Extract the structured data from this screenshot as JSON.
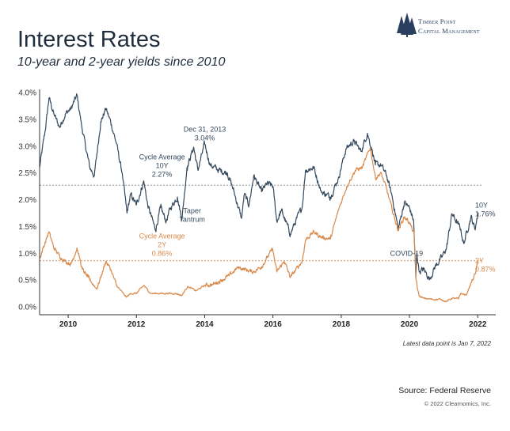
{
  "header": {
    "title": "Interest Rates",
    "subtitle": "10-year and 2-year yields since 2010"
  },
  "logo": {
    "line1": "Timber Point",
    "line2": "Capital Management",
    "icon": "pine-trees-icon",
    "color": "#2a3f5f"
  },
  "colors": {
    "series_10y": "#34495e",
    "series_2y": "#d9894a",
    "avg_line": "#888888",
    "axis": "#333333"
  },
  "chart_data": {
    "type": "line",
    "x_type": "date",
    "xlim": [
      "2009-03-01",
      "2022-01-07"
    ],
    "ylim": [
      0.0,
      4.0
    ],
    "ytick_labels": [
      "0.0%",
      "0.5%",
      "1.0%",
      "1.5%",
      "2.0%",
      "2.5%",
      "3.0%",
      "3.5%",
      "4.0%"
    ],
    "yticks": [
      0.0,
      0.5,
      1.0,
      1.5,
      2.0,
      2.5,
      3.0,
      3.5,
      4.0
    ],
    "xtick_labels": [
      "2010",
      "2012",
      "2014",
      "2016",
      "2018",
      "2020",
      "2022"
    ],
    "xticks": [
      "2010-01-01",
      "2012-01-01",
      "2014-01-01",
      "2016-01-01",
      "2018-01-01",
      "2020-01-01",
      "2022-01-01"
    ],
    "grid": false,
    "series": [
      {
        "name": "10Y",
        "end_label": "1.76%",
        "points": [
          [
            "2009-03-01",
            2.6
          ],
          [
            "2009-05-01",
            3.3
          ],
          [
            "2009-06-10",
            3.9
          ],
          [
            "2009-08-01",
            3.6
          ],
          [
            "2009-10-01",
            3.35
          ],
          [
            "2009-12-01",
            3.6
          ],
          [
            "2010-02-01",
            3.7
          ],
          [
            "2010-04-05",
            3.95
          ],
          [
            "2010-06-01",
            3.3
          ],
          [
            "2010-08-20",
            2.6
          ],
          [
            "2010-10-08",
            2.45
          ],
          [
            "2010-12-15",
            3.45
          ],
          [
            "2011-02-08",
            3.7
          ],
          [
            "2011-04-01",
            3.45
          ],
          [
            "2011-06-01",
            3.05
          ],
          [
            "2011-08-01",
            2.5
          ],
          [
            "2011-09-22",
            1.75
          ],
          [
            "2011-11-01",
            2.1
          ],
          [
            "2012-01-01",
            1.9
          ],
          [
            "2012-03-20",
            2.35
          ],
          [
            "2012-05-01",
            1.9
          ],
          [
            "2012-07-24",
            1.43
          ],
          [
            "2012-09-15",
            1.85
          ],
          [
            "2012-11-15",
            1.6
          ],
          [
            "2013-01-01",
            1.85
          ],
          [
            "2013-03-15",
            2.05
          ],
          [
            "2013-05-02",
            1.63
          ],
          [
            "2013-06-25",
            2.6
          ],
          [
            "2013-09-05",
            2.98
          ],
          [
            "2013-10-20",
            2.55
          ],
          [
            "2013-12-31",
            3.04
          ],
          [
            "2014-03-01",
            2.65
          ],
          [
            "2014-06-01",
            2.55
          ],
          [
            "2014-09-01",
            2.5
          ],
          [
            "2014-11-01",
            2.2
          ],
          [
            "2015-01-30",
            1.65
          ],
          [
            "2015-03-01",
            2.1
          ],
          [
            "2015-04-20",
            1.9
          ],
          [
            "2015-06-10",
            2.45
          ],
          [
            "2015-09-01",
            2.15
          ],
          [
            "2015-11-01",
            2.3
          ],
          [
            "2016-01-01",
            2.25
          ],
          [
            "2016-02-11",
            1.6
          ],
          [
            "2016-04-01",
            1.8
          ],
          [
            "2016-07-06",
            1.36
          ],
          [
            "2016-09-01",
            1.6
          ],
          [
            "2016-11-08",
            1.85
          ],
          [
            "2016-12-15",
            2.55
          ],
          [
            "2017-03-13",
            2.6
          ],
          [
            "2017-06-01",
            2.15
          ],
          [
            "2017-09-07",
            2.05
          ],
          [
            "2017-12-01",
            2.4
          ],
          [
            "2018-02-21",
            2.95
          ],
          [
            "2018-05-17",
            3.1
          ],
          [
            "2018-08-01",
            2.9
          ],
          [
            "2018-10-08",
            3.24
          ],
          [
            "2018-12-01",
            2.9
          ],
          [
            "2019-01-01",
            2.65
          ],
          [
            "2019-03-01",
            2.65
          ],
          [
            "2019-05-01",
            2.45
          ],
          [
            "2019-07-01",
            2.05
          ],
          [
            "2019-09-03",
            1.45
          ],
          [
            "2019-11-07",
            1.95
          ],
          [
            "2020-01-01",
            1.85
          ],
          [
            "2020-02-15",
            1.6
          ],
          [
            "2020-03-09",
            0.55
          ],
          [
            "2020-03-20",
            1.0
          ],
          [
            "2020-04-15",
            0.65
          ],
          [
            "2020-06-01",
            0.7
          ],
          [
            "2020-08-04",
            0.52
          ],
          [
            "2020-10-01",
            0.75
          ],
          [
            "2020-12-15",
            0.93
          ],
          [
            "2021-02-01",
            1.1
          ],
          [
            "2021-03-31",
            1.74
          ],
          [
            "2021-05-15",
            1.6
          ],
          [
            "2021-07-01",
            1.45
          ],
          [
            "2021-08-04",
            1.18
          ],
          [
            "2021-10-21",
            1.69
          ],
          [
            "2021-12-01",
            1.45
          ],
          [
            "2022-01-07",
            1.76
          ]
        ]
      },
      {
        "name": "2Y",
        "end_label": "0.87%",
        "points": [
          [
            "2009-03-01",
            0.9
          ],
          [
            "2009-06-08",
            1.4
          ],
          [
            "2009-08-01",
            1.1
          ],
          [
            "2009-10-01",
            0.95
          ],
          [
            "2009-12-01",
            0.85
          ],
          [
            "2010-02-01",
            0.8
          ],
          [
            "2010-04-05",
            1.1
          ],
          [
            "2010-06-01",
            0.7
          ],
          [
            "2010-08-01",
            0.55
          ],
          [
            "2010-11-04",
            0.33
          ],
          [
            "2011-02-08",
            0.85
          ],
          [
            "2011-04-01",
            0.7
          ],
          [
            "2011-06-01",
            0.4
          ],
          [
            "2011-09-15",
            0.18
          ],
          [
            "2011-11-01",
            0.25
          ],
          [
            "2012-01-01",
            0.25
          ],
          [
            "2012-03-20",
            0.4
          ],
          [
            "2012-06-01",
            0.25
          ],
          [
            "2012-09-01",
            0.25
          ],
          [
            "2012-12-01",
            0.25
          ],
          [
            "2013-03-01",
            0.25
          ],
          [
            "2013-05-01",
            0.21
          ],
          [
            "2013-07-01",
            0.38
          ],
          [
            "2013-10-01",
            0.3
          ],
          [
            "2014-01-01",
            0.4
          ],
          [
            "2014-04-01",
            0.42
          ],
          [
            "2014-07-01",
            0.5
          ],
          [
            "2014-09-18",
            0.58
          ],
          [
            "2014-12-26",
            0.74
          ],
          [
            "2015-03-05",
            0.7
          ],
          [
            "2015-06-01",
            0.65
          ],
          [
            "2015-09-01",
            0.75
          ],
          [
            "2015-12-29",
            1.08
          ],
          [
            "2016-02-11",
            0.65
          ],
          [
            "2016-05-01",
            0.85
          ],
          [
            "2016-07-06",
            0.55
          ],
          [
            "2016-11-08",
            0.85
          ],
          [
            "2016-12-15",
            1.25
          ],
          [
            "2017-03-13",
            1.4
          ],
          [
            "2017-06-01",
            1.3
          ],
          [
            "2017-09-08",
            1.27
          ],
          [
            "2017-12-01",
            1.8
          ],
          [
            "2018-03-01",
            2.25
          ],
          [
            "2018-06-01",
            2.55
          ],
          [
            "2018-08-15",
            2.6
          ],
          [
            "2018-11-08",
            2.97
          ],
          [
            "2019-01-03",
            2.4
          ],
          [
            "2019-03-01",
            2.5
          ],
          [
            "2019-05-01",
            2.2
          ],
          [
            "2019-07-01",
            1.8
          ],
          [
            "2019-09-03",
            1.43
          ],
          [
            "2019-11-07",
            1.68
          ],
          [
            "2020-01-01",
            1.58
          ],
          [
            "2020-02-20",
            1.35
          ],
          [
            "2020-03-12",
            0.5
          ],
          [
            "2020-03-25",
            0.35
          ],
          [
            "2020-04-15",
            0.2
          ],
          [
            "2020-06-01",
            0.16
          ],
          [
            "2020-09-01",
            0.14
          ],
          [
            "2020-12-01",
            0.14
          ],
          [
            "2021-02-01",
            0.1
          ],
          [
            "2021-04-01",
            0.16
          ],
          [
            "2021-06-10",
            0.15
          ],
          [
            "2021-07-01",
            0.25
          ],
          [
            "2021-09-01",
            0.22
          ],
          [
            "2021-10-21",
            0.45
          ],
          [
            "2021-11-15",
            0.52
          ],
          [
            "2021-12-15",
            0.7
          ],
          [
            "2022-01-07",
            0.87
          ]
        ]
      }
    ],
    "reference_lines": [
      {
        "name": "cycle-average-10y",
        "y": 2.27,
        "color": "#888888"
      },
      {
        "name": "cycle-average-2y",
        "y": 0.86,
        "color": "#d9894a"
      }
    ],
    "annotations": [
      {
        "name": "ann-cycle-avg-10y",
        "lines": [
          "Cycle Average",
          "10Y",
          "2.27%"
        ],
        "x": "2012-10-01",
        "y": 2.75,
        "color": "#34495e"
      },
      {
        "name": "ann-cycle-avg-2y",
        "lines": [
          "Cycle Average",
          "2Y",
          "0.86%"
        ],
        "x": "2012-10-01",
        "y": 1.28,
        "color": "#d9894a"
      },
      {
        "name": "ann-dec-2013",
        "lines": [
          "Dec 31, 2013",
          "3.04%"
        ],
        "x": "2014-01-01",
        "y": 3.27,
        "color": "#34495e"
      },
      {
        "name": "ann-taper-tantrum",
        "lines": [
          "Taper",
          "Tantrum"
        ],
        "x": "2013-08-20",
        "y": 1.75,
        "color": "#34495e"
      },
      {
        "name": "ann-covid",
        "lines": [
          "COVID-19"
        ],
        "x": "2019-12-01",
        "y": 0.95,
        "color": "#34495e"
      },
      {
        "name": "ann-end-10y",
        "lines": [
          "10Y",
          "1.76%"
        ],
        "x": "2022-01-25",
        "y": 1.85,
        "color": "#34495e"
      },
      {
        "name": "ann-end-2y",
        "lines": [
          "2Y",
          "0.87%"
        ],
        "x": "2022-01-25",
        "y": 0.82,
        "color": "#d9894a"
      }
    ]
  },
  "footer": {
    "latest": "Latest data point is Jan 7, 2022",
    "source": "Source: Federal Reserve",
    "copyright": "© 2022 Clearnomics, Inc."
  }
}
